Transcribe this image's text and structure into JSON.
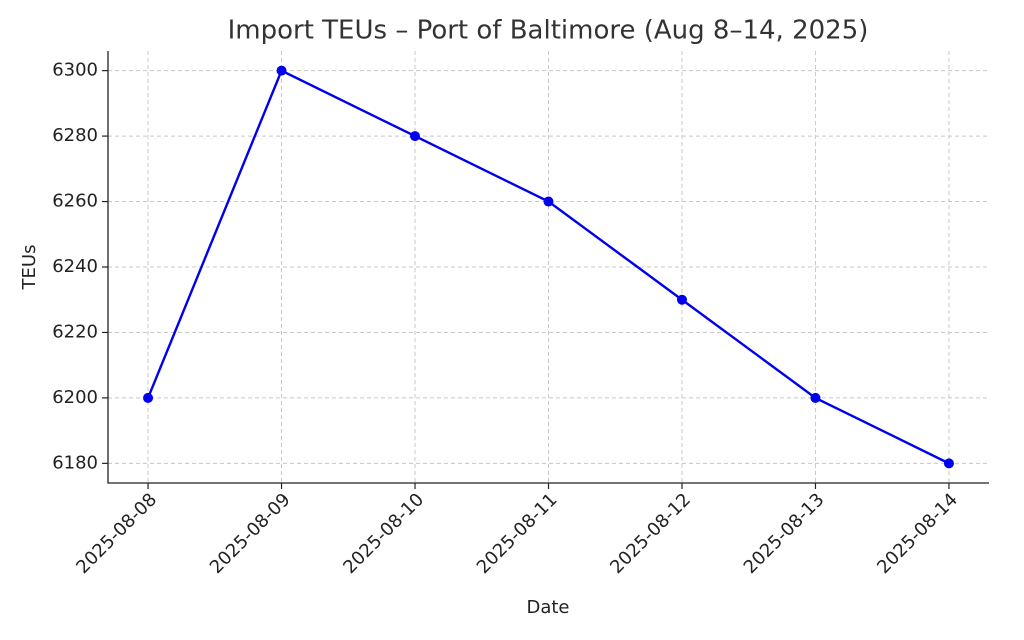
{
  "chart_data": {
    "type": "line",
    "title": "Import TEUs – Port of Baltimore (Aug 8–14, 2025)",
    "x_label": "Date",
    "y_label": "TEUs",
    "categories": [
      "2025-08-08",
      "2025-08-09",
      "2025-08-10",
      "2025-08-11",
      "2025-08-12",
      "2025-08-13",
      "2025-08-14"
    ],
    "values": [
      6200,
      6300,
      6280,
      6260,
      6230,
      6200,
      6180
    ],
    "color": "#0000ee",
    "ylim": [
      6174,
      6306
    ],
    "yticks": [
      6180,
      6200,
      6220,
      6240,
      6260,
      6280,
      6300
    ],
    "grid": true
  }
}
